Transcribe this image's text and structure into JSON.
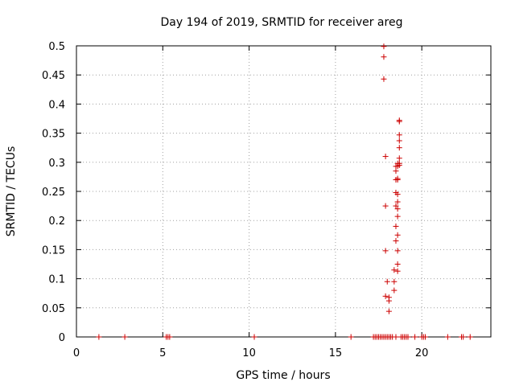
{
  "chart_data": {
    "type": "scatter",
    "title": "Day 194 of 2019, SRMTID for receiver areg",
    "xlabel": "GPS time / hours",
    "ylabel": "SRMTID / TECUs",
    "xlim": [
      0,
      24
    ],
    "ylim": [
      0,
      0.5
    ],
    "xticks": [
      "0",
      "5",
      "10",
      "15",
      "20"
    ],
    "yticks": [
      "0",
      "0.05",
      "0.1",
      "0.15",
      "0.2",
      "0.25",
      "0.3",
      "0.35",
      "0.4",
      "0.45",
      "0.5"
    ],
    "grid": true,
    "marker": "+",
    "color": "#cc0000",
    "series": [
      {
        "points": [
          [
            1.3,
            0
          ],
          [
            2.8,
            0
          ],
          [
            5.2,
            0
          ],
          [
            5.3,
            0
          ],
          [
            5.4,
            0
          ],
          [
            10.3,
            0
          ],
          [
            15.9,
            0
          ],
          [
            17.2,
            0
          ],
          [
            17.3,
            0
          ],
          [
            17.4,
            0
          ],
          [
            17.5,
            0
          ],
          [
            17.6,
            0
          ],
          [
            17.7,
            0
          ],
          [
            17.8,
            0
          ],
          [
            17.9,
            0
          ],
          [
            18.0,
            0
          ],
          [
            18.1,
            0
          ],
          [
            18.2,
            0
          ],
          [
            18.3,
            0
          ],
          [
            18.5,
            0
          ],
          [
            18.8,
            0
          ],
          [
            18.9,
            0
          ],
          [
            19.0,
            0
          ],
          [
            19.1,
            0
          ],
          [
            19.2,
            0
          ],
          [
            19.6,
            0
          ],
          [
            20.0,
            0
          ],
          [
            20.1,
            0
          ],
          [
            20.2,
            0
          ],
          [
            21.5,
            0
          ],
          [
            22.3,
            0
          ],
          [
            22.4,
            0
          ],
          [
            22.8,
            0
          ],
          [
            17.8,
            0.499
          ],
          [
            17.8,
            0.481
          ],
          [
            17.8,
            0.443
          ],
          [
            17.9,
            0.31
          ],
          [
            17.9,
            0.225
          ],
          [
            17.9,
            0.148
          ],
          [
            17.9,
            0.07
          ],
          [
            18.0,
            0.095
          ],
          [
            18.1,
            0.068
          ],
          [
            18.1,
            0.062
          ],
          [
            18.1,
            0.044
          ],
          [
            18.4,
            0.08
          ],
          [
            18.4,
            0.095
          ],
          [
            18.4,
            0.115
          ],
          [
            18.5,
            0.165
          ],
          [
            18.5,
            0.19
          ],
          [
            18.5,
            0.225
          ],
          [
            18.5,
            0.248
          ],
          [
            18.5,
            0.27
          ],
          [
            18.5,
            0.285
          ],
          [
            18.5,
            0.293
          ],
          [
            18.6,
            0.298
          ],
          [
            18.6,
            0.293
          ],
          [
            18.6,
            0.272
          ],
          [
            18.6,
            0.245
          ],
          [
            18.6,
            0.22
          ],
          [
            18.6,
            0.207
          ],
          [
            18.6,
            0.175
          ],
          [
            18.6,
            0.148
          ],
          [
            18.6,
            0.125
          ],
          [
            18.6,
            0.113
          ],
          [
            18.7,
            0.372
          ],
          [
            18.7,
            0.37
          ],
          [
            18.7,
            0.347
          ],
          [
            18.7,
            0.337
          ],
          [
            18.7,
            0.325
          ],
          [
            18.7,
            0.307
          ],
          [
            18.7,
            0.298
          ],
          [
            18.7,
            0.295
          ],
          [
            18.6,
            0.27
          ],
          [
            18.6,
            0.232
          ]
        ]
      }
    ]
  }
}
